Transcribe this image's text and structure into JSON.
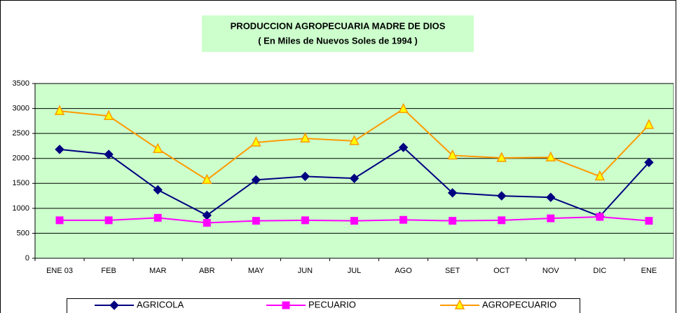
{
  "chart_data": {
    "type": "line",
    "title": "PRODUCCION AGROPECUARIA MADRE DE DIOS",
    "subtitle": "( En Miles de Nuevos Soles de 1994 )",
    "categories": [
      "ENE 03",
      "FEB",
      "MAR",
      "ABR",
      "MAY",
      "JUN",
      "JUL",
      "AGO",
      "SET",
      "OCT",
      "NOV",
      "DIC",
      "ENE"
    ],
    "series": [
      {
        "name": "AGRICOLA",
        "color": "#000080",
        "marker": "diamond",
        "values": [
          2180,
          2080,
          1370,
          860,
          1570,
          1640,
          1600,
          2220,
          1310,
          1250,
          1220,
          840,
          1920
        ]
      },
      {
        "name": "PECUARIO",
        "color": "#ff00ff",
        "marker": "square",
        "values": [
          760,
          760,
          810,
          710,
          750,
          760,
          750,
          770,
          750,
          760,
          800,
          830,
          750
        ]
      },
      {
        "name": "AGROPECUARIO",
        "color": "#ff9900",
        "marker": "triangle",
        "values": [
          2950,
          2850,
          2190,
          1570,
          2320,
          2400,
          2350,
          2990,
          2060,
          2010,
          2020,
          1640,
          2670
        ]
      }
    ],
    "ylim": [
      0,
      3500
    ],
    "yticks": [
      0,
      500,
      1000,
      1500,
      2000,
      2500,
      3000,
      3500
    ],
    "grid": true,
    "legend": "bottom"
  }
}
